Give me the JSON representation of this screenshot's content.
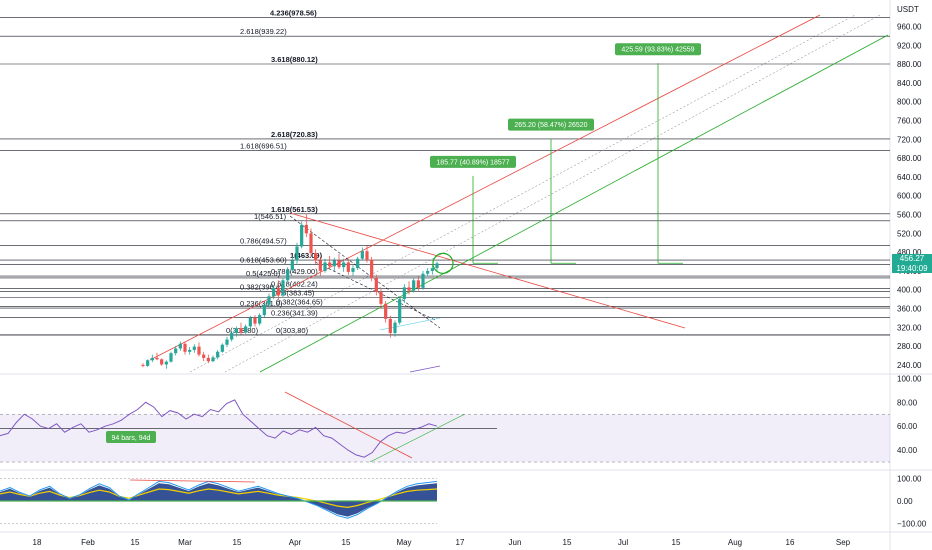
{
  "chart_data": {
    "type": "candlestick",
    "price_axis": {
      "unit": "USDT",
      "ylim": [
        225,
        995
      ],
      "ticks": [
        "960.00",
        "920.00",
        "880.00",
        "840.00",
        "800.00",
        "760.00",
        "720.00",
        "680.00",
        "640.00",
        "600.00",
        "560.00",
        "520.00",
        "480.00",
        "440.00",
        "400.00",
        "360.00",
        "320.00",
        "280.00",
        "240.00"
      ],
      "current_price": "456.27",
      "countdown": "19:40:09"
    },
    "time_axis": [
      "18",
      "Feb",
      "15",
      "Mar",
      "15",
      "Apr",
      "15",
      "May",
      "17",
      "Jun",
      "15",
      "Jul",
      "15",
      "Aug",
      "16",
      "Sep"
    ],
    "fib_levels_upper": [
      {
        "label": "4.236(978.56)",
        "price": 978.56,
        "bold": true
      },
      {
        "label": "2.618(939.22)",
        "price": 939.22,
        "bold": false
      },
      {
        "label": "3.618(880.12)",
        "price": 880.12,
        "bold": true
      },
      {
        "label": "2.618(720.83)",
        "price": 720.83,
        "bold": true
      },
      {
        "label": "1.618(696.51)",
        "price": 696.51,
        "bold": false
      },
      {
        "label": "1.618(561.53)",
        "price": 561.53,
        "bold": true
      },
      {
        "label": "1(546.51)",
        "price": 546.51,
        "bold": false
      },
      {
        "label": "0.786(494.57)",
        "price": 494.57,
        "bold": false
      },
      {
        "label": "1(463.09)",
        "price": 463.09,
        "bold": true
      },
      {
        "label": "0.618(453.60)",
        "price": 453.6,
        "bold": false
      },
      {
        "label": "0.5(425.0)",
        "price": 425.0,
        "bold": false
      },
      {
        "label": "0.786(429.00)",
        "price": 429.0,
        "bold": false
      },
      {
        "label": "0.618(402.24)",
        "price": 402.24,
        "bold": false
      },
      {
        "label": "0.382(396.4)",
        "price": 396.4,
        "bold": false
      },
      {
        "label": "0.5(383.45)",
        "price": 383.45,
        "bold": false
      },
      {
        "label": "0.382(364.65)",
        "price": 364.65,
        "bold": false
      },
      {
        "label": "0.236(361.0)",
        "price": 361.0,
        "bold": false
      },
      {
        "label": "0.236(341.39)",
        "price": 341.39,
        "bold": false
      },
      {
        "label": "0(303.80)",
        "price": 303.8,
        "bold": false
      },
      {
        "label": "0(303.80)",
        "price": 303.8,
        "bold": false
      }
    ],
    "targets": [
      {
        "label": "185.77 (40.89%) 18577",
        "from": 456.27,
        "to": 642.04
      },
      {
        "label": "265.20 (58.47%) 26520",
        "from": 456.27,
        "to": 721.47
      },
      {
        "label": "425.59 (93.83%) 42559",
        "from": 456.27,
        "to": 881.86
      }
    ],
    "rsi": {
      "ticks": [
        "100.00",
        "80.00",
        "60.00",
        "40.00"
      ],
      "ylim": [
        25,
        102
      ],
      "band": [
        30,
        70
      ],
      "level_line": 58,
      "annotation": "94 bars, 94d",
      "values": [
        52,
        54,
        63,
        70,
        66,
        60,
        58,
        62,
        55,
        59,
        62,
        55,
        57,
        60,
        62,
        65,
        70,
        74,
        80,
        76,
        68,
        73,
        71,
        66,
        70,
        68,
        74,
        72,
        79,
        82,
        70,
        64,
        58,
        52,
        50,
        56,
        53,
        57,
        55,
        59,
        52,
        50,
        45,
        40,
        36,
        34,
        38,
        47,
        52,
        55,
        54,
        57,
        59,
        62,
        60
      ]
    },
    "macd": {
      "ticks": [
        "100.00",
        "0.00",
        "−100.00"
      ],
      "ylim": [
        -130,
        130
      ],
      "values": [
        40,
        55,
        35,
        20,
        45,
        60,
        30,
        10,
        25,
        50,
        70,
        55,
        20,
        5,
        30,
        55,
        80,
        75,
        60,
        45,
        65,
        80,
        70,
        55,
        40,
        50,
        60,
        45,
        30,
        20,
        10,
        -5,
        -20,
        -40,
        -60,
        -70,
        -55,
        -30,
        -10,
        15,
        40,
        60,
        70,
        75,
        80
      ]
    },
    "candles": [
      [
        240,
        244,
        235,
        238
      ],
      [
        238,
        252,
        236,
        250
      ],
      [
        250,
        262,
        246,
        255
      ],
      [
        255,
        266,
        250,
        252
      ],
      [
        252,
        254,
        238,
        241
      ],
      [
        241,
        250,
        232,
        247
      ],
      [
        247,
        268,
        245,
        265
      ],
      [
        265,
        280,
        260,
        275
      ],
      [
        275,
        290,
        270,
        285
      ],
      [
        285,
        290,
        262,
        268
      ],
      [
        268,
        278,
        262,
        272
      ],
      [
        272,
        284,
        266,
        279
      ],
      [
        279,
        288,
        258,
        262
      ],
      [
        262,
        268,
        248,
        255
      ],
      [
        255,
        262,
        244,
        248
      ],
      [
        248,
        260,
        246,
        256
      ],
      [
        256,
        272,
        252,
        268
      ],
      [
        268,
        286,
        266,
        283
      ],
      [
        283,
        300,
        278,
        294
      ],
      [
        294,
        312,
        290,
        308
      ],
      [
        308,
        322,
        300,
        318
      ],
      [
        318,
        330,
        305,
        310
      ],
      [
        310,
        326,
        306,
        322
      ],
      [
        322,
        344,
        318,
        340
      ],
      [
        340,
        346,
        322,
        328
      ],
      [
        328,
        350,
        324,
        346
      ],
      [
        346,
        372,
        342,
        368
      ],
      [
        368,
        392,
        362,
        386
      ],
      [
        386,
        410,
        380,
        404
      ],
      [
        404,
        420,
        380,
        388
      ],
      [
        388,
        426,
        384,
        420
      ],
      [
        420,
        448,
        415,
        442
      ],
      [
        442,
        470,
        436,
        462
      ],
      [
        462,
        500,
        455,
        492
      ],
      [
        492,
        545,
        488,
        538
      ],
      [
        538,
        562,
        512,
        520
      ],
      [
        520,
        530,
        470,
        478
      ],
      [
        478,
        486,
        455,
        462
      ],
      [
        462,
        470,
        430,
        440
      ],
      [
        440,
        466,
        436,
        458
      ],
      [
        458,
        472,
        445,
        450
      ],
      [
        450,
        468,
        440,
        462
      ],
      [
        462,
        476,
        444,
        448
      ],
      [
        448,
        466,
        438,
        458
      ],
      [
        458,
        464,
        432,
        438
      ],
      [
        438,
        452,
        430,
        446
      ],
      [
        446,
        470,
        442,
        466
      ],
      [
        466,
        490,
        462,
        482
      ],
      [
        482,
        494,
        458,
        464
      ],
      [
        464,
        470,
        418,
        425
      ],
      [
        425,
        432,
        388,
        395
      ],
      [
        395,
        402,
        360,
        370
      ],
      [
        370,
        376,
        330,
        338
      ],
      [
        338,
        345,
        298,
        308
      ],
      [
        308,
        335,
        300,
        330
      ],
      [
        330,
        386,
        326,
        380
      ],
      [
        380,
        412,
        372,
        405
      ],
      [
        405,
        418,
        390,
        398
      ],
      [
        398,
        424,
        394,
        420
      ],
      [
        420,
        428,
        398,
        404
      ],
      [
        404,
        440,
        400,
        434
      ],
      [
        434,
        446,
        428,
        440
      ],
      [
        440,
        452,
        432,
        446
      ],
      [
        446,
        460,
        440,
        456
      ]
    ]
  }
}
